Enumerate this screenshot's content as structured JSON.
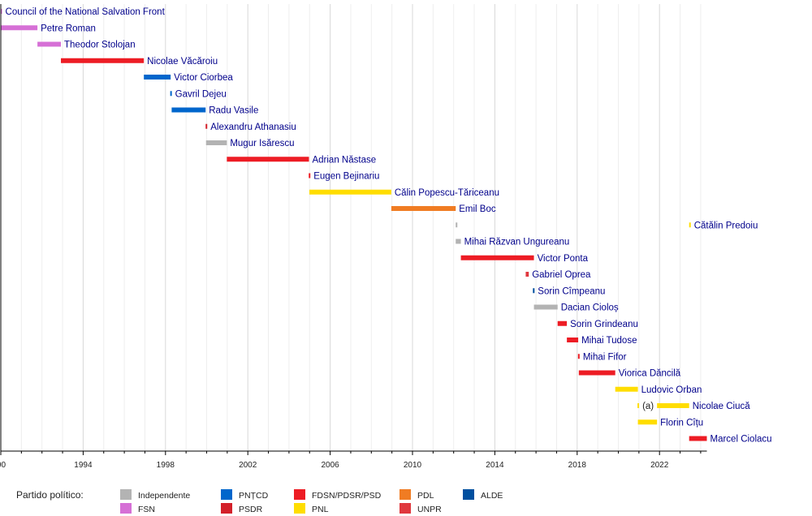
{
  "chart_data": {
    "type": "gantt-timeline",
    "title": "",
    "xlabel": "",
    "ylabel": "",
    "xlim": [
      1990.0,
      2024.3
    ],
    "x_ticks": [
      1990,
      1994,
      1998,
      2002,
      2006,
      2010,
      2014,
      2018,
      2022
    ],
    "x_tick_labels": [
      "90",
      "1994",
      "1998",
      "2002",
      "2006",
      "2010",
      "2014",
      "2018",
      "2022"
    ],
    "grid": "vertical, yearly",
    "legend_title": "Partido político:",
    "legend_placement": "bottom",
    "parties": [
      {
        "key": "IND",
        "name": "Independente",
        "color": "#b3b3b3"
      },
      {
        "key": "FSN",
        "name": "FSN",
        "color": "#d670d6"
      },
      {
        "key": "PNTCD",
        "name": "PNȚCD",
        "color": "#0066cc"
      },
      {
        "key": "PSDR",
        "name": "PSDR",
        "color": "#d3202a"
      },
      {
        "key": "PSD",
        "name": "FDSN/PDSR/PSD",
        "color": "#ed1c24"
      },
      {
        "key": "PNL",
        "name": "PNL",
        "color": "#ffdd00"
      },
      {
        "key": "PDL",
        "name": "PDL",
        "color": "#f07c23"
      },
      {
        "key": "UNPR",
        "name": "UNPR",
        "color": "#e0383e"
      },
      {
        "key": "ALDE",
        "name": "ALDE",
        "color": "#004f9f"
      }
    ],
    "legend_order": [
      "IND",
      "FSN",
      "PNTCD",
      "PSDR",
      "PSD",
      "PNL",
      "PDL",
      "UNPR",
      "ALDE"
    ],
    "rows": [
      {
        "label": "Council of the National Salvation Front",
        "bars": [
          {
            "start": 1989.98,
            "end": 1990.0,
            "party": "FSN"
          }
        ],
        "label_at": 1990.1
      },
      {
        "label": "Petre Roman",
        "bars": [
          {
            "start": 1989.98,
            "end": 1991.78,
            "party": "FSN"
          }
        ]
      },
      {
        "label": "Theodor Stolojan",
        "bars": [
          {
            "start": 1991.78,
            "end": 1992.92,
            "party": "FSN"
          }
        ]
      },
      {
        "label": "Nicolae Văcăroiu",
        "bars": [
          {
            "start": 1992.92,
            "end": 1996.95,
            "party": "PSD"
          }
        ]
      },
      {
        "label": "Victor Ciorbea",
        "bars": [
          {
            "start": 1996.95,
            "end": 1998.25,
            "party": "PNTCD"
          }
        ]
      },
      {
        "label": "Gavril Dejeu",
        "bars": [
          {
            "start": 1998.23,
            "end": 1998.3,
            "party": "PNTCD"
          }
        ]
      },
      {
        "label": "Radu Vasile",
        "bars": [
          {
            "start": 1998.3,
            "end": 1999.95,
            "party": "PNTCD"
          }
        ]
      },
      {
        "label": "Alexandru Athanasiu",
        "bars": [
          {
            "start": 1999.95,
            "end": 2000.0,
            "party": "PSDR"
          }
        ]
      },
      {
        "label": "Mugur Isărescu",
        "bars": [
          {
            "start": 1999.97,
            "end": 2000.98,
            "party": "IND"
          }
        ]
      },
      {
        "label": "Adrian Năstase",
        "bars": [
          {
            "start": 2000.98,
            "end": 2004.97,
            "party": "PSD"
          }
        ]
      },
      {
        "label": "Eugen Bejinariu",
        "bars": [
          {
            "start": 2004.96,
            "end": 2004.99,
            "party": "PSD"
          }
        ]
      },
      {
        "label": "Călin Popescu-Tăriceanu",
        "bars": [
          {
            "start": 2004.99,
            "end": 2008.97,
            "party": "PNL"
          }
        ]
      },
      {
        "label": "Emil Boc",
        "bars": [
          {
            "start": 2008.97,
            "end": 2012.1,
            "party": "PDL"
          }
        ]
      },
      {
        "label": "Cătălin Predoiu",
        "bars": [
          {
            "start": 2012.1,
            "end": 2012.12,
            "party": "IND"
          },
          {
            "start": 2023.44,
            "end": 2023.48,
            "party": "PNL"
          }
        ]
      },
      {
        "label": "Mihai Răzvan Ungureanu",
        "bars": [
          {
            "start": 2012.1,
            "end": 2012.35,
            "party": "IND"
          }
        ]
      },
      {
        "label": "Victor Ponta",
        "bars": [
          {
            "start": 2012.35,
            "end": 2015.9,
            "party": "PSD"
          }
        ]
      },
      {
        "label": "Gabriel Oprea",
        "bars": [
          {
            "start": 2015.5,
            "end": 2015.65,
            "party": "UNPR"
          }
        ]
      },
      {
        "label": "Sorin Cîmpeanu",
        "bars": [
          {
            "start": 2015.85,
            "end": 2015.9,
            "party": "ALDE"
          }
        ]
      },
      {
        "label": "Dacian Cioloș",
        "bars": [
          {
            "start": 2015.9,
            "end": 2017.05,
            "party": "IND"
          }
        ]
      },
      {
        "label": "Sorin Grindeanu",
        "bars": [
          {
            "start": 2017.05,
            "end": 2017.5,
            "party": "PSD"
          }
        ]
      },
      {
        "label": "Mihai Tudose",
        "bars": [
          {
            "start": 2017.5,
            "end": 2018.05,
            "party": "PSD"
          }
        ]
      },
      {
        "label": "Mihai Fifor",
        "bars": [
          {
            "start": 2018.04,
            "end": 2018.08,
            "party": "PSD"
          }
        ]
      },
      {
        "label": "Viorica Dăncilă",
        "bars": [
          {
            "start": 2018.08,
            "end": 2019.85,
            "party": "PSD"
          }
        ]
      },
      {
        "label": "Ludovic Orban",
        "bars": [
          {
            "start": 2019.85,
            "end": 2020.95,
            "party": "PNL"
          }
        ]
      },
      {
        "label": "Nicolae Ciucă",
        "bars": [
          {
            "start": 2020.93,
            "end": 2020.98,
            "party": "PNL",
            "note": "(a)"
          },
          {
            "start": 2021.88,
            "end": 2023.44,
            "party": "PNL"
          }
        ]
      },
      {
        "label": "Florin Cîțu",
        "bars": [
          {
            "start": 2020.95,
            "end": 2021.88,
            "party": "PNL"
          }
        ]
      },
      {
        "label": "Marcel Ciolacu",
        "bars": [
          {
            "start": 2023.44,
            "end": 2024.3,
            "party": "PSD"
          }
        ]
      }
    ]
  }
}
